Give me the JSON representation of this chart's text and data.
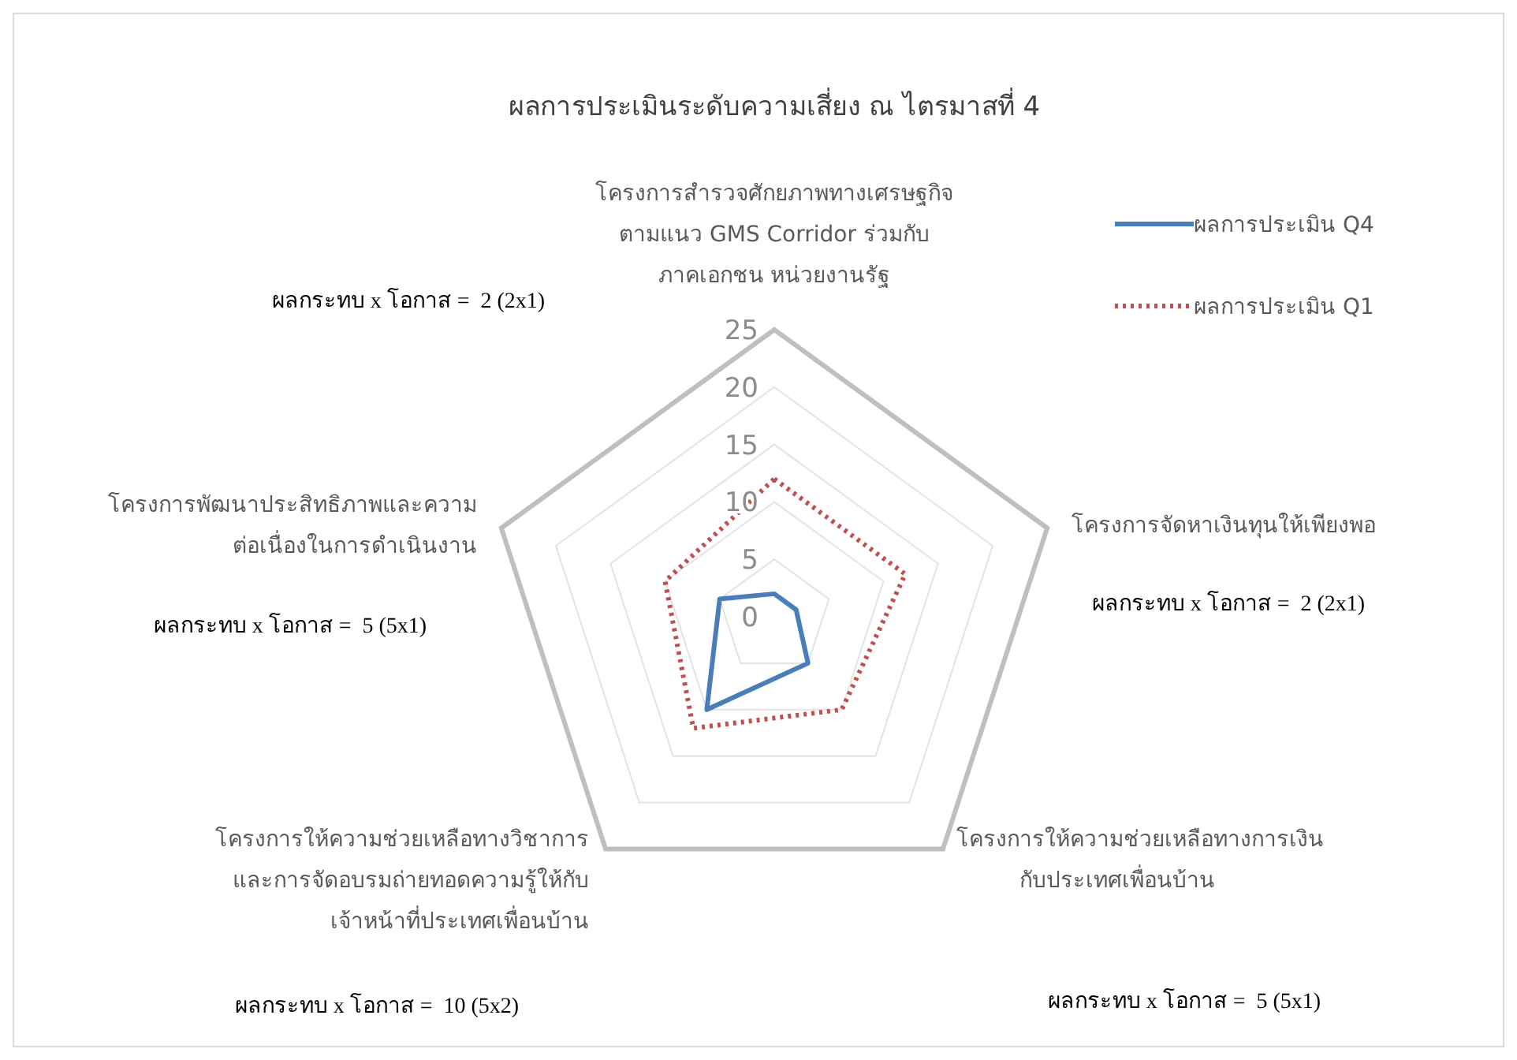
{
  "chart_data": {
    "type": "radar",
    "title": "ผลการประเมินระดับความเสี่ยง ณ ไตรมาสที่ 4",
    "categories": [
      "โครงการสำรวจศักยภาพทางเศรษฐกิจ\nตามแนว GMS Corridor ร่วมกับ\nภาคเอกชน หน่วยงานรัฐ",
      "โครงการจัดหาเงินทุนให้เพียงพอ",
      "โครงการให้ความช่วยเหลือทางการเงิน\nกับประเทศเพื่อนบ้าน",
      "โครงการให้ความช่วยเหลือทางวิชาการ\nและการจัดอบรมถ่ายทอดความรู้ให้กับ\nเจ้าหน้าที่ประเทศเพื่อนบ้าน",
      "โครงการพัฒนาประสิทธิภาพและความ\nต่อเนื่องในการดำเนินงาน"
    ],
    "series": [
      {
        "name": "ผลการประเมิน Q4",
        "color": "#4a7ebb",
        "line_style": "solid",
        "values": [
          2,
          2,
          5,
          10,
          5
        ]
      },
      {
        "name": "ผลการประเมิน Q1",
        "color": "#c0504d",
        "line_style": "dotted",
        "values": [
          12,
          12,
          10,
          12,
          10
        ]
      }
    ],
    "ylim": [
      0,
      25
    ],
    "yticks": [
      0,
      5,
      10,
      15,
      20,
      25
    ],
    "grid": true,
    "legend": "top right",
    "marker": "none",
    "annotations": [
      "ผลกระทบ x โอกาส =  2 (2x1)",
      "ผลกระทบ x โอกาส =  2 (2x1)",
      "ผลกระทบ x โอกาส =  5 (5x1)",
      "ผลกระทบ x โอกาส =  10 (5x2)",
      "ผลกระทบ x โอกาส =  5 (5x1)"
    ]
  }
}
